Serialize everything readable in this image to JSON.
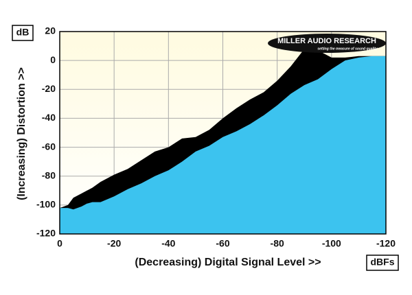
{
  "chart_data": {
    "type": "area",
    "y_unit": "dB",
    "x_unit": "dBFs",
    "ylabel": "(Increasing) Distortion >>",
    "xlabel": "(Decreasing) Digital Signal Level >>",
    "annotations": [
      "MILLER AUDIO RESEARCH",
      "setting the measure of sound quality"
    ],
    "x": [
      0,
      -3,
      -5,
      -8,
      -10,
      -12,
      -15,
      -20,
      -25,
      -30,
      -35,
      -40,
      -45,
      -50,
      -55,
      -60,
      -65,
      -70,
      -75,
      -80,
      -85,
      -90,
      -95,
      -100,
      -105,
      -110,
      -115,
      -120
    ],
    "series": [
      {
        "color": "#000000",
        "values": [
          -102,
          -100,
          -95,
          -92,
          -90,
          -88,
          -84,
          -79,
          -75,
          -69,
          -63,
          -60,
          -54,
          -53,
          -48,
          -40,
          -33,
          -27,
          -22,
          -14,
          -4,
          8,
          7,
          2,
          2,
          3,
          3,
          3
        ]
      },
      {
        "color": "#3cc3ef",
        "values": [
          -102,
          -102,
          -103,
          -101,
          -99,
          -98,
          -98,
          -94,
          -89,
          -85,
          -80,
          -76,
          -70,
          -63,
          -59,
          -53,
          -49,
          -44,
          -38,
          -31,
          -23,
          -17,
          -13,
          -6,
          0,
          2,
          3,
          3
        ]
      }
    ],
    "xlim": [
      0,
      -120
    ],
    "xticks": [
      0,
      -20,
      -40,
      -60,
      -80,
      -100,
      -120
    ],
    "ylim": [
      -120,
      20
    ],
    "yticks": [
      20,
      0,
      -20,
      -40,
      -60,
      -80,
      -100,
      -120
    ],
    "grid": true,
    "background": "#fbf8e2"
  }
}
